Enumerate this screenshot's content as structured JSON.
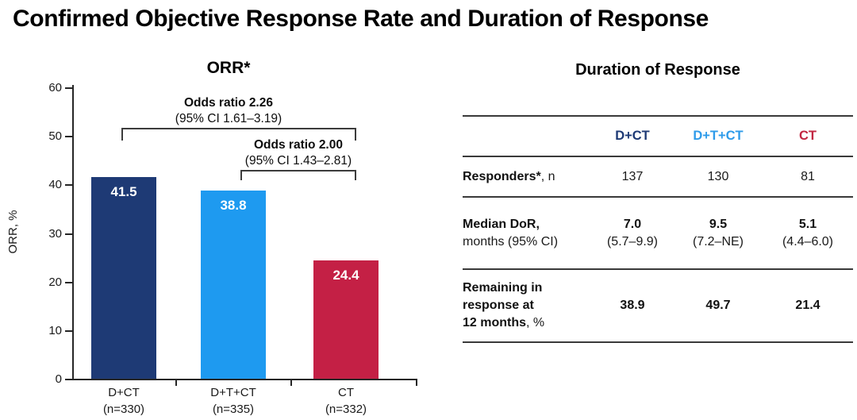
{
  "page": {
    "title": "Confirmed Objective Response Rate and Duration of Response"
  },
  "chart_data": {
    "type": "bar",
    "title": "ORR*",
    "ylabel": "ORR, %",
    "ylim": [
      0,
      60
    ],
    "ytick_step": 10,
    "grid": false,
    "categories": [
      "D+CT",
      "D+T+CT",
      "CT"
    ],
    "category_sublabels": [
      "(n=330)",
      "(n=335)",
      "(n=332)"
    ],
    "values": [
      41.5,
      38.8,
      24.4
    ],
    "value_labels": [
      "41.5",
      "38.8",
      "24.4"
    ],
    "bar_colors": [
      "#1e3a75",
      "#1e9af0",
      "#c42045"
    ],
    "value_label_color": "#ffffff",
    "annotations": [
      {
        "label": "Odds ratio 2.26",
        "ci": "(95% CI 1.61–3.19)",
        "from_bar": 0,
        "to_bar": 2
      },
      {
        "label": "Odds ratio 2.00",
        "ci": "(95% CI 1.43–2.81)",
        "from_bar": 1,
        "to_bar": 2
      }
    ]
  },
  "dor_table": {
    "title": "Duration of Response",
    "header": [
      {
        "label": "D+CT",
        "color": "#1e3a75"
      },
      {
        "label": "D+T+CT",
        "color": "#2e9bea"
      },
      {
        "label": "CT",
        "color": "#c22742"
      }
    ],
    "rows": [
      {
        "label_lines": [
          [
            {
              "t": "Responders*",
              "b": true
            },
            {
              "t": ", n",
              "b": false
            }
          ]
        ],
        "cells": [
          {
            "lines": [
              {
                "t": "137",
                "b": false
              }
            ]
          },
          {
            "lines": [
              {
                "t": "130",
                "b": false
              }
            ]
          },
          {
            "lines": [
              {
                "t": "81",
                "b": false
              }
            ]
          }
        ]
      },
      {
        "label_lines": [
          [
            {
              "t": "Median DoR,",
              "b": true
            }
          ],
          [
            {
              "t": "months (95% CI)",
              "b": false
            }
          ]
        ],
        "cells": [
          {
            "lines": [
              {
                "t": "7.0",
                "b": true
              },
              {
                "t": "(5.7–9.9)",
                "b": false
              }
            ]
          },
          {
            "lines": [
              {
                "t": "9.5",
                "b": true
              },
              {
                "t": "(7.2–NE)",
                "b": false
              }
            ]
          },
          {
            "lines": [
              {
                "t": "5.1",
                "b": true
              },
              {
                "t": "(4.4–6.0)",
                "b": false
              }
            ]
          }
        ]
      },
      {
        "label_lines": [
          [
            {
              "t": "Remaining in",
              "b": true
            }
          ],
          [
            {
              "t": "response at",
              "b": true
            }
          ],
          [
            {
              "t": "12 months",
              "b": true
            },
            {
              "t": ", %",
              "b": false
            }
          ]
        ],
        "cells": [
          {
            "lines": [
              {
                "t": "38.9",
                "b": true
              }
            ]
          },
          {
            "lines": [
              {
                "t": "49.7",
                "b": true
              }
            ]
          },
          {
            "lines": [
              {
                "t": "21.4",
                "b": true
              }
            ]
          }
        ]
      }
    ]
  }
}
